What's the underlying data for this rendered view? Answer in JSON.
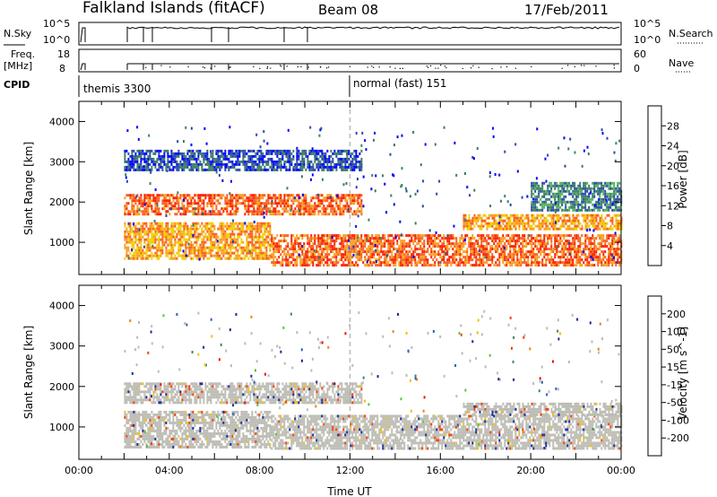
{
  "header": {
    "title": "Falkland Islands (fitACF)",
    "beam": "Beam 08",
    "date": "17/Feb/2011"
  },
  "strips": {
    "nsky_label": "N.Sky",
    "nsky_ticks": [
      "10^5",
      "10^0"
    ],
    "nsearch_label": "N.Search",
    "nsearch_ticks": [
      "10^5",
      "10^0"
    ],
    "freq_label_1": "Freq.",
    "freq_label_2": "[MHz]",
    "freq_ticks": [
      "18",
      "8"
    ],
    "nave_label": "Nave",
    "nave_ticks": [
      "60",
      "0"
    ],
    "cpid_label": "CPID",
    "cpid_1": "themis 3300",
    "cpid_2": "normal (fast) 151"
  },
  "chart_data": [
    {
      "type": "heatmap",
      "panel": "power",
      "ylabel": "Slant Range [km]",
      "xlabel": "",
      "xlim": [
        0,
        24
      ],
      "ylim": [
        200,
        4500
      ],
      "yticks": [
        "1000",
        "2000",
        "3000",
        "4000"
      ],
      "xtick_labels": [],
      "colorbar": {
        "label": "Power [dB]",
        "ticks": [
          "4",
          "8",
          "12",
          "16",
          "20",
          "24",
          "28"
        ],
        "colors": [
          "#0000ff",
          "#2a4aa8",
          "#3a8060",
          "#54b060",
          "#9ccc30",
          "#f0d000",
          "#f8a020",
          "#f86020",
          "#f82000",
          "#e00000"
        ]
      },
      "data_gap_until_hours": 2.0,
      "marker_line_hours": 12.0,
      "bands": [
        {
          "t0": 2.0,
          "t1": 12.5,
          "r0": 2800,
          "r1": 3300,
          "level": 4
        },
        {
          "t0": 2.0,
          "t1": 12.5,
          "r0": 1700,
          "r1": 2200,
          "level": 22
        },
        {
          "t0": 2.0,
          "t1": 8.5,
          "r0": 600,
          "r1": 1500,
          "level": 20
        },
        {
          "t0": 8.5,
          "t1": 24.0,
          "r0": 400,
          "r1": 1200,
          "level": 24
        },
        {
          "t0": 17.0,
          "t1": 24.0,
          "r0": 1300,
          "r1": 1700,
          "level": 20
        },
        {
          "t0": 20.0,
          "t1": 24.0,
          "r0": 1800,
          "r1": 2500,
          "level": 8
        }
      ]
    },
    {
      "type": "heatmap",
      "panel": "velocity",
      "ylabel": "Slant Range [km]",
      "xlabel": "Time UT",
      "xlim": [
        0,
        24
      ],
      "ylim": [
        200,
        4500
      ],
      "yticks": [
        "1000",
        "2000",
        "3000",
        "4000"
      ],
      "xtick_labels": [
        "00:00",
        "04:00",
        "08:00",
        "12:00",
        "16:00",
        "20:00",
        "00:00"
      ],
      "colorbar": {
        "label": "Velocity [m s^-1]",
        "ticks": [
          "200",
          "100",
          "50",
          "15",
          "-15",
          "-50",
          "-100",
          "-200"
        ],
        "colors": [
          "#1a2a9a",
          "#3060b0",
          "#3a8a60",
          "#60c040",
          "#bcbcb4",
          "#f0c000",
          "#f88000",
          "#f84000",
          "#f01000"
        ]
      },
      "data_gap_until_hours": 2.0,
      "marker_line_hours": 12.0,
      "bands": [
        {
          "t0": 2.0,
          "t1": 12.5,
          "r0": 1600,
          "r1": 2100,
          "level": 0
        },
        {
          "t0": 2.0,
          "t1": 8.5,
          "r0": 500,
          "r1": 1400,
          "level": 0
        },
        {
          "t0": 8.5,
          "t1": 24.0,
          "r0": 500,
          "r1": 1300,
          "level": 0
        },
        {
          "t0": 17.0,
          "t1": 24.0,
          "r0": 1300,
          "r1": 1600,
          "level": 0
        }
      ]
    }
  ],
  "colors": {
    "axis": "#000000",
    "marker_line": "#a8a8a8",
    "scatter_gray": "#bcbcb4"
  }
}
